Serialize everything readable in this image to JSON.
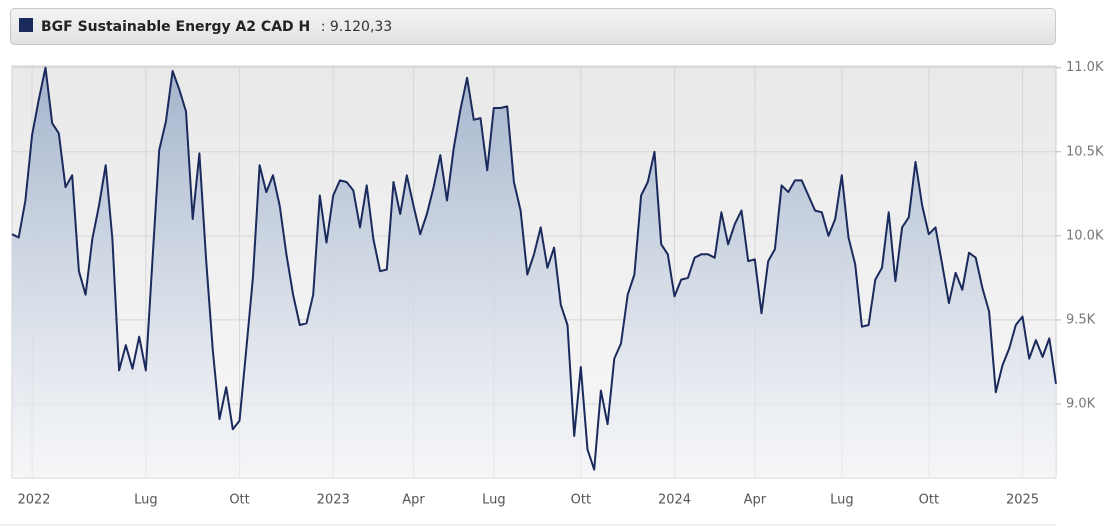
{
  "chart_data": {
    "type": "line",
    "series": [
      {
        "name": "BGF Sustainable Energy A2 CAD H",
        "color": "#1b2a5c",
        "values": [
          10010,
          9990,
          10210,
          10600,
          10810,
          11000,
          10670,
          10610,
          10290,
          10360,
          9790,
          9650,
          9980,
          10180,
          10420,
          9980,
          9200,
          9350,
          9210,
          9400,
          9200,
          9860,
          10510,
          10680,
          10980,
          10870,
          10740,
          10100,
          10490,
          9860,
          9320,
          8910,
          9100,
          8850,
          8900,
          9320,
          9750,
          10420,
          10260,
          10360,
          10180,
          9890,
          9650,
          9470,
          9480,
          9650,
          10240,
          9960,
          10240,
          10330,
          10320,
          10270,
          10050,
          10300,
          9980,
          9790,
          9800,
          10320,
          10130,
          10360,
          10180,
          10010,
          10130,
          10290,
          10480,
          10210,
          10520,
          10750,
          10940,
          10690,
          10700,
          10390,
          10760,
          10760,
          10770,
          10320,
          10150,
          9770,
          9890,
          10050,
          9810,
          9930,
          9590,
          9470,
          8810,
          9220,
          8730,
          8610,
          9080,
          8880,
          9270,
          9360,
          9650,
          9770,
          10240,
          10320,
          10500,
          9950,
          9890,
          9640,
          9740,
          9750,
          9870,
          9890,
          9890,
          9870,
          10140,
          9950,
          10070,
          10150,
          9850,
          9860,
          9540,
          9850,
          9920,
          10300,
          10260,
          10330,
          10330,
          10240,
          10150,
          10140,
          10000,
          10100,
          10360,
          9990,
          9830,
          9460,
          9470,
          9740,
          9810,
          10140,
          9730,
          10050,
          10110,
          10440,
          10180,
          10010,
          10050,
          9830,
          9600,
          9780,
          9680,
          9900,
          9870,
          9690,
          9550,
          9070,
          9230,
          9330,
          9470,
          9520,
          9270,
          9380,
          9280,
          9390,
          9120.33
        ],
        "last_value_label": ": 9.120,33"
      }
    ],
    "categories": [
      null,
      null,
      null,
      "2022",
      null,
      null,
      null,
      null,
      null,
      null,
      null,
      null,
      null,
      null,
      null,
      null,
      null,
      null,
      null,
      null,
      "Lug",
      null,
      null,
      null,
      null,
      null,
      null,
      null,
      null,
      null,
      null,
      null,
      null,
      null,
      "Ott",
      null,
      null,
      null,
      null,
      null,
      null,
      null,
      null,
      null,
      null,
      null,
      null,
      null,
      "2023",
      null,
      null,
      null,
      null,
      null,
      null,
      null,
      null,
      null,
      null,
      null,
      "Apr",
      null,
      null,
      null,
      null,
      null,
      null,
      null,
      null,
      null,
      null,
      null,
      "Lug",
      null,
      null,
      null,
      null,
      null,
      null,
      null,
      null,
      null,
      null,
      null,
      null,
      "Ott",
      null,
      null,
      null,
      null,
      null,
      null,
      null,
      null,
      null,
      null,
      null,
      null,
      null,
      "2024",
      null,
      null,
      null,
      null,
      null,
      null,
      null,
      null,
      null,
      null,
      null,
      "Apr",
      null,
      null,
      null,
      null,
      null,
      null,
      null,
      null,
      null,
      null,
      null,
      null,
      "Lug",
      null,
      null,
      null,
      null,
      null,
      null,
      null,
      null,
      null,
      null,
      null,
      null,
      "Ott",
      null,
      null,
      null,
      null,
      null,
      null,
      null,
      null,
      null,
      null,
      null,
      null,
      null,
      "2025",
      null,
      null,
      null,
      null,
      null
    ],
    "ylim": [
      8560,
      11010
    ],
    "yticks": [
      {
        "value": 9000,
        "label": "9.0K"
      },
      {
        "value": 9500,
        "label": "9.5K"
      },
      {
        "value": 10000,
        "label": "10.0K"
      },
      {
        "value": 10500,
        "label": "10.5K"
      },
      {
        "value": 11000,
        "label": "11.0K"
      }
    ],
    "grid": true
  }
}
